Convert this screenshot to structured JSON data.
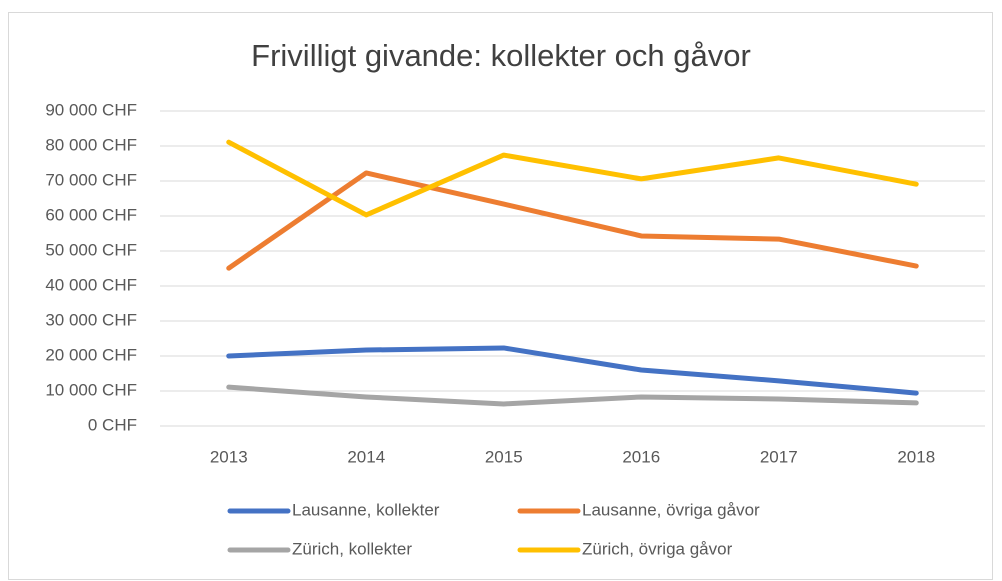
{
  "chart_data": {
    "type": "line",
    "title": "Frivilligt givande: kollekter och gåvor",
    "categories": [
      "2013",
      "2014",
      "2015",
      "2016",
      "2017",
      "2018"
    ],
    "series": [
      {
        "name": "Lausanne, kollekter",
        "color": "#4472c4",
        "values": [
          20000,
          21700,
          22300,
          16000,
          12900,
          9400
        ]
      },
      {
        "name": "Lausanne, övriga gåvor",
        "color": "#ed7d31",
        "values": [
          45100,
          72300,
          63400,
          54300,
          53400,
          45700
        ]
      },
      {
        "name": "Zürich, kollekter",
        "color": "#a5a5a5",
        "values": [
          11100,
          8300,
          6300,
          8300,
          7700,
          6600
        ]
      },
      {
        "name": "Zürich, övriga gåvor",
        "color": "#ffc000",
        "values": [
          81100,
          60300,
          77400,
          70600,
          76600,
          69100
        ]
      }
    ],
    "ylim": [
      0,
      90000
    ],
    "yticks": [
      {
        "value": 0,
        "label": "0 CHF"
      },
      {
        "value": 10000,
        "label": "10 000 CHF"
      },
      {
        "value": 20000,
        "label": "20 000 CHF"
      },
      {
        "value": 30000,
        "label": "30 000 CHF"
      },
      {
        "value": 40000,
        "label": "40 000 CHF"
      },
      {
        "value": 50000,
        "label": "50 000 CHF"
      },
      {
        "value": 60000,
        "label": "60 000 CHF"
      },
      {
        "value": 70000,
        "label": "70 000 CHF"
      },
      {
        "value": 80000,
        "label": "80 000 CHF"
      },
      {
        "value": 90000,
        "label": "90 000 CHF"
      }
    ],
    "grid": true,
    "legend": "bottom"
  }
}
